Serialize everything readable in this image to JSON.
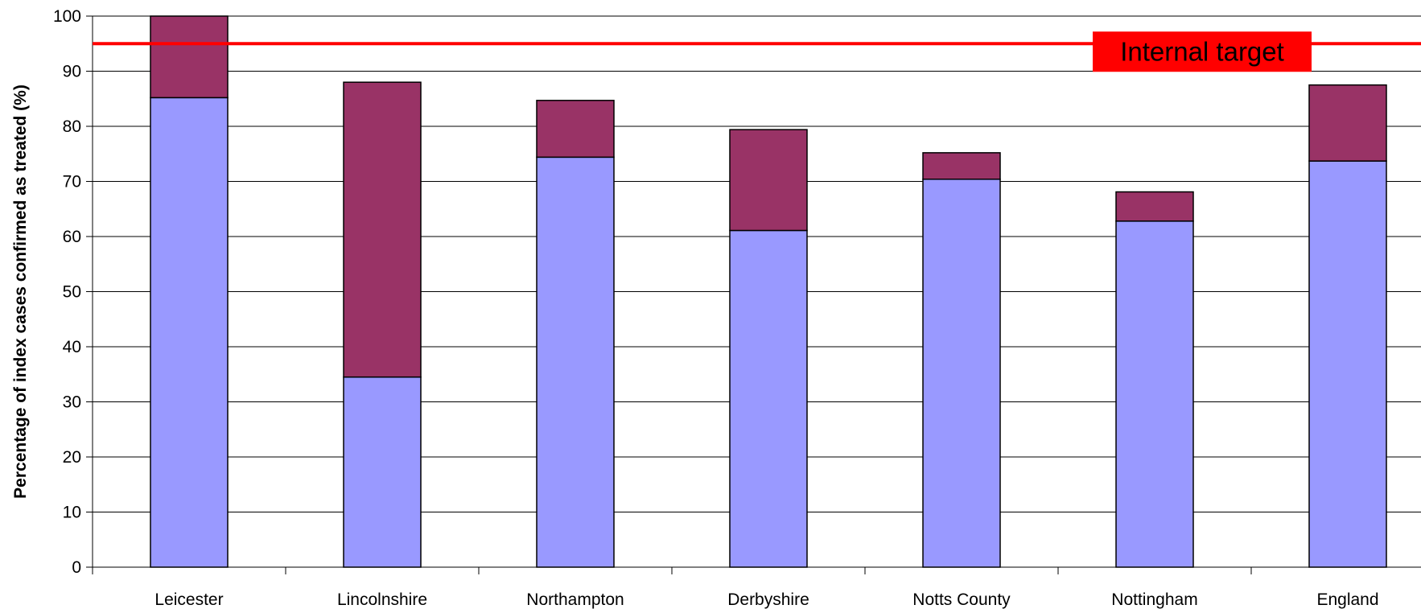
{
  "chart_data": {
    "type": "bar",
    "stacked": true,
    "categories": [
      "Leicester",
      "Lincolnshire",
      "Northampton",
      "Derbyshire",
      "Notts County",
      "Nottingham",
      "England"
    ],
    "series": [
      {
        "color": "#9999ff",
        "values": [
          85.2,
          34.5,
          74.4,
          61.1,
          70.4,
          62.8,
          73.7
        ]
      },
      {
        "color": "#993366",
        "values": [
          14.8,
          53.5,
          10.3,
          18.3,
          4.8,
          5.3,
          13.8
        ]
      }
    ],
    "title": "",
    "xlabel": "",
    "ylabel": "Percentage of index cases confirmed as treated (%)",
    "ylim": [
      0,
      100
    ],
    "yticks": [
      0,
      10,
      20,
      30,
      40,
      50,
      60,
      70,
      80,
      90,
      100
    ],
    "grid": true,
    "target": {
      "value": 95,
      "label": "Internal target",
      "line_color": "#ff0000",
      "label_background": "#ff0000"
    }
  }
}
